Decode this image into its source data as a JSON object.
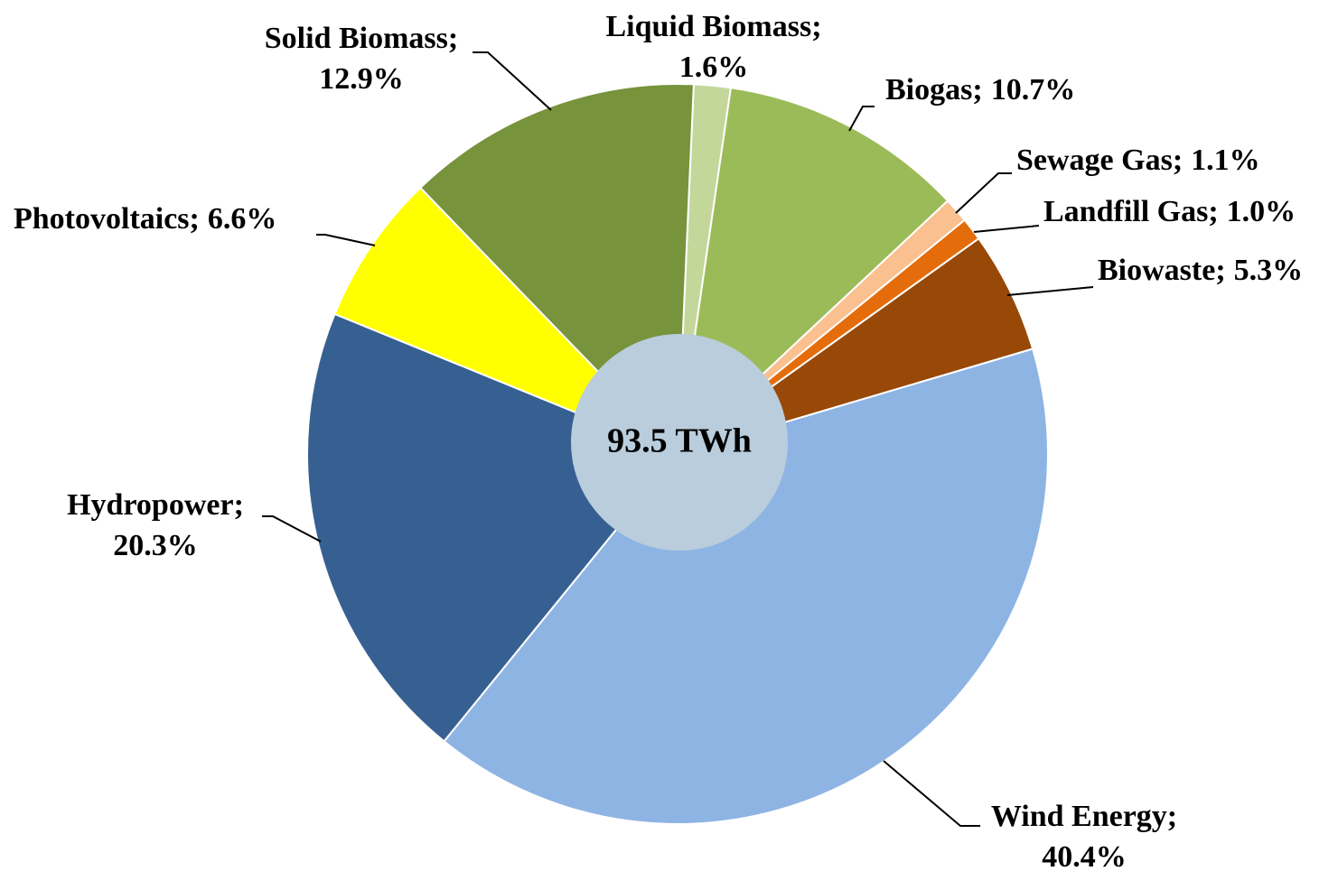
{
  "chart_data": {
    "type": "pie",
    "center_label": "93.5 TWh",
    "categories": [
      "Liquid Biomass;",
      "Biogas;",
      "Sewage Gas;",
      "Landfill Gas;",
      "Biowaste;",
      "Wind Energy;",
      "Hydropower;",
      "Photovoltaics;",
      "Solid Biomass;"
    ],
    "values": [
      1.6,
      10.7,
      1.1,
      1.0,
      5.3,
      40.4,
      20.3,
      6.6,
      12.9
    ],
    "value_labels": [
      "1.6%",
      "10.7%",
      "1.1%",
      "1.0%",
      "5.3%",
      "40.4%",
      "20.3%",
      "6.6%",
      "12.9%"
    ],
    "colors": [
      "#c4d79b",
      "#9bbb59",
      "#fac090",
      "#e46c0a",
      "#984807",
      "#8eb4e3",
      "#376092",
      "#ffff00",
      "#77933c"
    ]
  }
}
